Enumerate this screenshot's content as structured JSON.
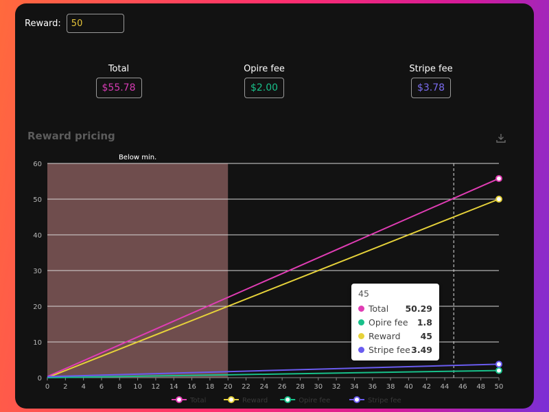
{
  "reward": {
    "label": "Reward:",
    "value": "50"
  },
  "stats": [
    {
      "title": "Total",
      "value": "$55.78",
      "color": "#d63bb4"
    },
    {
      "title": "Opire fee",
      "value": "$2.00",
      "color": "#19c08a"
    },
    {
      "title": "Stripe fee",
      "value": "$3.78",
      "color": "#7b6cf0"
    }
  ],
  "chart_data": {
    "type": "line",
    "title": "Reward pricing",
    "x": [
      0,
      50
    ],
    "x_ticks": [
      0,
      2,
      4,
      6,
      8,
      10,
      12,
      14,
      16,
      18,
      20,
      22,
      24,
      26,
      28,
      30,
      32,
      34,
      36,
      38,
      40,
      42,
      44,
      46,
      48,
      50
    ],
    "y_ticks": [
      0,
      10,
      20,
      30,
      40,
      50,
      60
    ],
    "xlim": [
      0,
      50
    ],
    "ylim": [
      0,
      60
    ],
    "grid": true,
    "legend_placement": "bottom",
    "series": [
      {
        "name": "Total",
        "values": [
          0.3,
          55.78
        ],
        "color": "#e03db4"
      },
      {
        "name": "Reward",
        "values": [
          0,
          50
        ],
        "color": "#e6d23a"
      },
      {
        "name": "Opire fee",
        "values": [
          0,
          2.0
        ],
        "color": "#18c08a"
      },
      {
        "name": "Stripe fee",
        "values": [
          0.3,
          3.78
        ],
        "color": "#6a5cf0"
      }
    ],
    "mark_area": {
      "label": "Below min.",
      "x_from": 0,
      "x_to": 20,
      "color": "#7a5454"
    },
    "tooltip": {
      "x": "45",
      "rows": [
        {
          "name": "Total",
          "value": "50.29",
          "color": "#e03db4"
        },
        {
          "name": "Opire fee",
          "value": "1.8",
          "color": "#18c08a"
        },
        {
          "name": "Reward",
          "value": "45",
          "color": "#e6d23a"
        },
        {
          "name": "Stripe fee",
          "value": "3.49",
          "color": "#6a5cf0"
        }
      ]
    }
  },
  "icons": {
    "download": "download-icon"
  }
}
